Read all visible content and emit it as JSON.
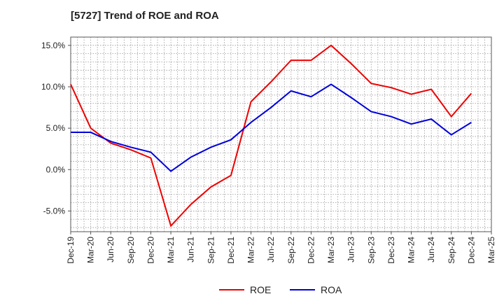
{
  "chart_data": {
    "type": "line",
    "title": "[5727]  Trend of ROE and ROA",
    "x": [
      "Dec-19",
      "Mar-20",
      "Jun-20",
      "Sep-20",
      "Dec-20",
      "Mar-21",
      "Jun-21",
      "Sep-21",
      "Dec-21",
      "Mar-22",
      "Jun-22",
      "Sep-22",
      "Dec-22",
      "Mar-23",
      "Jun-23",
      "Sep-23",
      "Dec-23",
      "Mar-24",
      "Jun-24",
      "Sep-24",
      "Dec-24",
      "Mar-25"
    ],
    "y_ticks": [
      "15.0%",
      "10.0%",
      "5.0%",
      "0.0%",
      "-5.0%"
    ],
    "ylim": [
      -7.5,
      16.0
    ],
    "grid": true,
    "legend_position": "bottom",
    "series": [
      {
        "name": "ROE",
        "color": "#ee0000",
        "values": [
          10.3,
          5.0,
          3.2,
          2.4,
          1.4,
          -6.8,
          -4.2,
          -2.1,
          -0.7,
          8.2,
          10.6,
          13.2,
          13.2,
          15.0,
          12.8,
          10.4,
          9.9,
          9.1,
          9.7,
          6.4,
          9.2,
          null
        ]
      },
      {
        "name": "ROA",
        "color": "#0000dd",
        "values": [
          4.5,
          4.5,
          3.4,
          2.7,
          2.1,
          -0.2,
          1.5,
          2.7,
          3.6,
          5.7,
          7.5,
          9.5,
          8.8,
          10.3,
          8.7,
          7.0,
          6.4,
          5.5,
          6.1,
          4.2,
          5.7,
          null
        ]
      }
    ]
  }
}
